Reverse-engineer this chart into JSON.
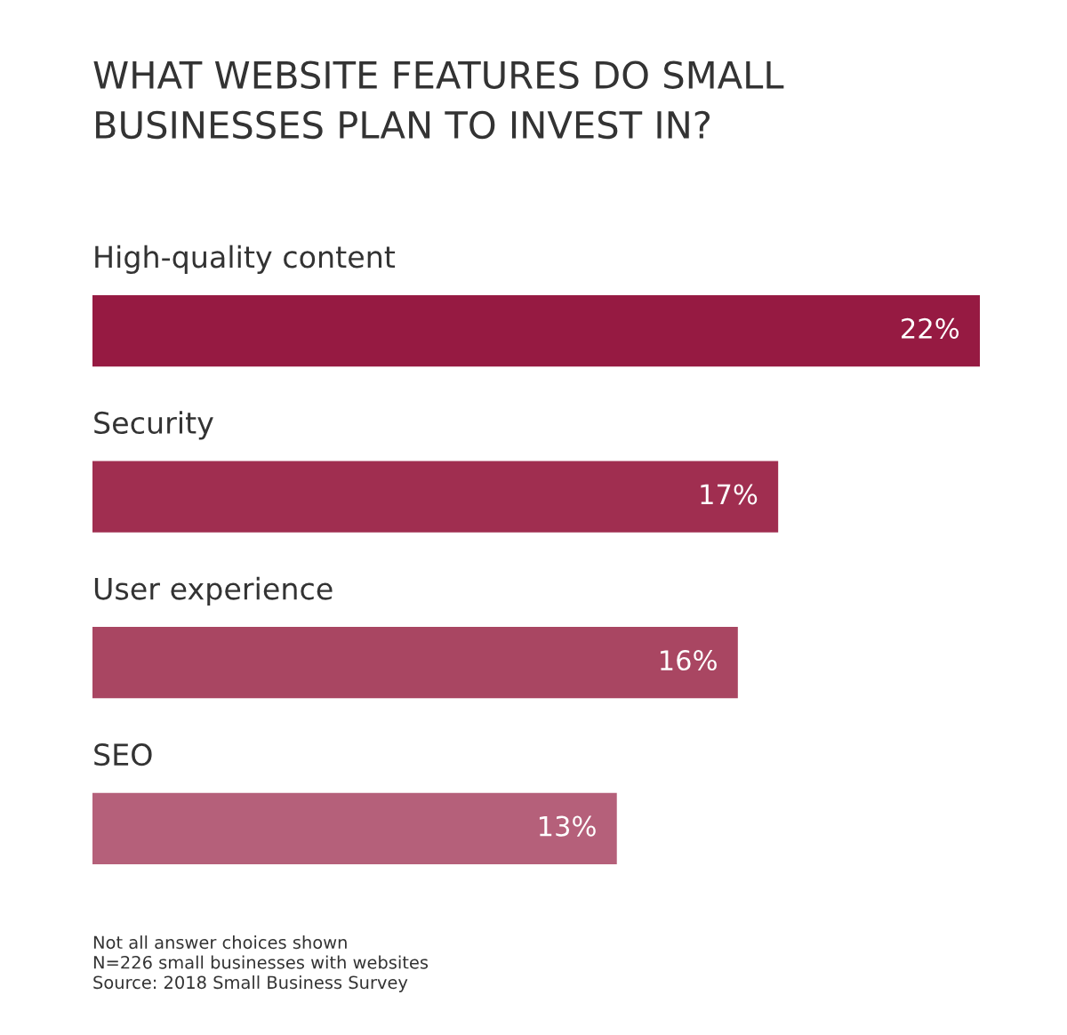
{
  "chart_data": {
    "type": "bar",
    "orientation": "horizontal",
    "title": "WHAT WEBSITE FEATURES DO SMALL\nBUSINESSES PLAN TO INVEST IN?",
    "categories": [
      "High-quality content",
      "Security",
      "User experience",
      "SEO"
    ],
    "values": [
      22,
      17,
      16,
      13
    ],
    "colors": [
      "#961a42",
      "#a02e50",
      "#a94662",
      "#b5607a"
    ],
    "value_labels": [
      "22%",
      "17%",
      "16%",
      "13%"
    ],
    "xlim": [
      0,
      22
    ],
    "annotations": [
      "Not all answer choices shown",
      "N=226 small businesses with websites",
      "Source: 2018 Small Business Survey"
    ]
  }
}
